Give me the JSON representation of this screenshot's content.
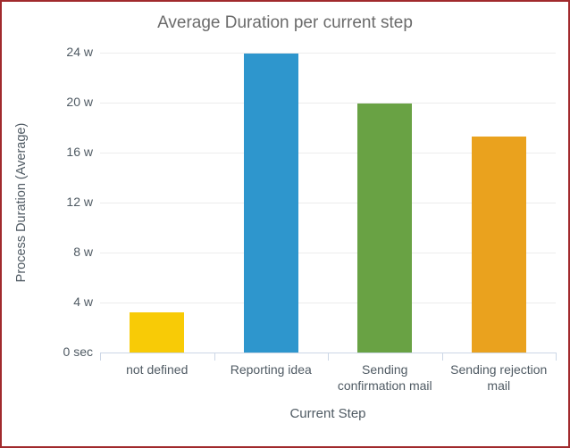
{
  "chart_data": {
    "type": "bar",
    "title": "Average Duration per current step",
    "xlabel": "Current Step",
    "ylabel": "Process Duration (Average)",
    "categories": [
      "not defined",
      "Reporting idea",
      "Sending confirmation mail",
      "Sending rejection mail"
    ],
    "values": [
      3.2,
      23.9,
      19.9,
      17.3
    ],
    "unit": "weeks",
    "ylim": [
      0,
      24
    ],
    "ytick_interval": 4,
    "ytick_labels": [
      "0 sec",
      "4 w",
      "8 w",
      "12 w",
      "16 w",
      "20 w",
      "24 w"
    ],
    "grid": true,
    "legend": false,
    "bar_colors": [
      "#f8cb06",
      "#2e96cd",
      "#69a244",
      "#eaa21e"
    ]
  },
  "colors": {
    "border": "#a12a2d",
    "title_text": "#6b6b6b",
    "axis_text": "#4f5a63",
    "gridline": "#ececec",
    "axis_line": "#ccd7e6",
    "background": "#ffffff"
  }
}
